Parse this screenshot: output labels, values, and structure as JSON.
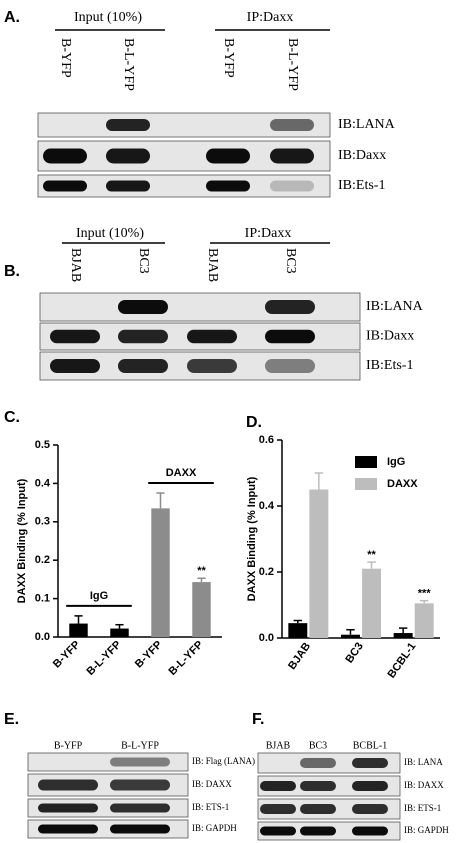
{
  "panels": {
    "A": {
      "letter": "A.",
      "groups": [
        "Input (10%)",
        "IP:Daxx"
      ],
      "lanes": [
        "B-YFP",
        "B-L-YFP",
        "B-YFP",
        "B-L-YFP"
      ],
      "rows": [
        "IB:LANA",
        "IB:Daxx",
        "IB:Ets-1"
      ]
    },
    "B": {
      "letter": "B.",
      "groups": [
        "Input (10%)",
        "IP:Daxx"
      ],
      "lanes": [
        "BJAB",
        "BC3",
        "BJAB",
        "BC3"
      ],
      "rows": [
        "IB:LANA",
        "IB:Daxx",
        "IB:Ets-1"
      ]
    },
    "E": {
      "letter": "E.",
      "groups": [],
      "lanes": [
        "B-YFP",
        "B-L-YFP"
      ],
      "rows": [
        "IB: Flag (LANA)",
        "IB: DAXX",
        "IB: ETS-1",
        "IB: GAPDH"
      ]
    },
    "F": {
      "letter": "F.",
      "groups": [],
      "lanes": [
        "BJAB",
        "BC3",
        "BCBL-1"
      ],
      "rows": [
        "IB: LANA",
        "IB: DAXX",
        "IB: ETS-1",
        "IB: GAPDH"
      ]
    }
  },
  "chart_data": [
    {
      "type": "bar",
      "letter": "C.",
      "ylabel": "DAXX Binding (% Input)",
      "categories": [
        "B-YFP",
        "B-L-YFP",
        "B-YFP",
        "B-L-YFP"
      ],
      "series": [
        {
          "name": "IgG",
          "color": "#000000",
          "values": [
            0.035,
            0.022,
            null,
            null
          ],
          "errors": [
            0.02,
            0.01,
            null,
            null
          ]
        },
        {
          "name": "DAXX",
          "color": "#8c8c8c",
          "values": [
            null,
            null,
            0.335,
            0.143
          ],
          "errors": [
            null,
            null,
            0.04,
            0.01
          ],
          "significance": [
            null,
            null,
            null,
            "**"
          ]
        }
      ],
      "ylim": [
        0,
        0.5
      ],
      "yticks": [
        {
          "value": 0,
          "label": "0.0"
        },
        0.1,
        0.2,
        0.3,
        0.4,
        0.5
      ],
      "legend": "groups"
    },
    {
      "type": "bar",
      "letter": "D.",
      "ylabel": "DAXX Binding (% Input)",
      "categories": [
        "BJAB",
        "BC3",
        "BCBL-1"
      ],
      "series": [
        {
          "name": "IgG",
          "color": "#000000",
          "values": [
            0.045,
            0.01,
            0.015
          ],
          "errors": [
            0.008,
            0.015,
            0.015
          ]
        },
        {
          "name": "DAXX",
          "color": "#bdbdbd",
          "values": [
            0.45,
            0.21,
            0.105
          ],
          "errors": [
            0.05,
            0.02,
            0.008
          ],
          "significance": [
            null,
            "**",
            "***"
          ]
        }
      ],
      "ylim": [
        0,
        0.6
      ],
      "yticks": [
        {
          "value": 0,
          "label": "0.0"
        },
        0.2,
        0.4,
        0.6
      ],
      "legend": "upper right"
    }
  ]
}
